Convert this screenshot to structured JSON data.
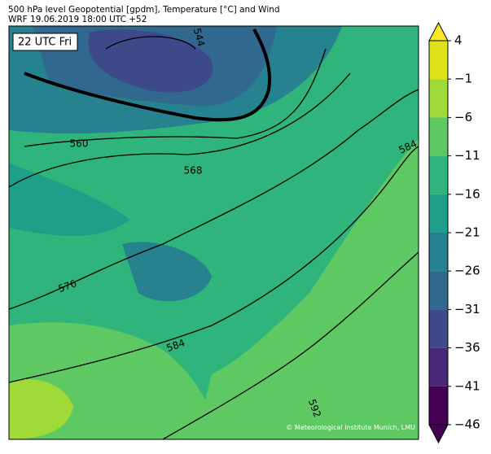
{
  "header": {
    "line1": "500 hPa level Geopotential [gpdm], Temperature [°C] and Wind",
    "line2": "WRF 19.06.2019 18:00 UTC +52"
  },
  "map": {
    "time_label": "22 UTC Fri",
    "contour_labels": [
      "544",
      "560",
      "568",
      "576",
      "584",
      "584",
      "592"
    ],
    "credit": "© Meteorological Institute Munich, LMU"
  },
  "colorbar": {
    "ticks": [
      4,
      {
        "value": -1,
        "label": "−1"
      },
      {
        "value": -6,
        "label": "−6"
      },
      {
        "value": -11,
        "label": "−11"
      },
      {
        "value": -16,
        "label": "−16"
      },
      {
        "value": -21,
        "label": "−21"
      },
      {
        "value": -26,
        "label": "−26"
      },
      {
        "value": -31,
        "label": "−31"
      },
      {
        "value": -36,
        "label": "−36"
      },
      {
        "value": -41,
        "label": "−41"
      },
      {
        "value": -46,
        "label": "−46"
      }
    ],
    "colors": [
      "#dde318",
      "#a0da39",
      "#5ec962",
      "#2fb47c",
      "#1f9e89",
      "#26828e",
      "#31688e",
      "#3e4989",
      "#482878",
      "#440154"
    ],
    "over_color": "#fde725",
    "under_color": "#440154"
  }
}
